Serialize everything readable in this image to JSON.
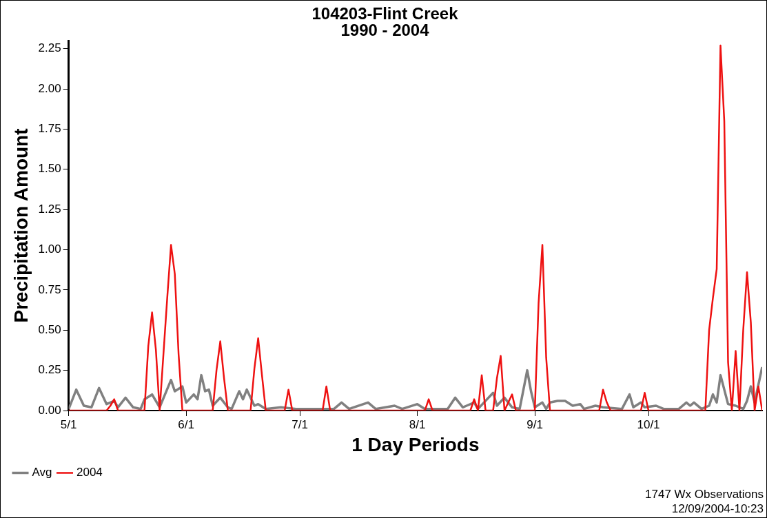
{
  "chart_data": {
    "type": "line",
    "title": "104203-Flint Creek",
    "subtitle": "1990 - 2004",
    "xlabel": "1 Day Periods",
    "ylabel": "Precipitation Amount",
    "annotations": [
      "1747 Wx Observations",
      "12/09/2004-10:23"
    ],
    "xlim": [
      "--05-01",
      "--10-31"
    ],
    "xticks": [
      {
        "value": "--05-01",
        "label": "5/1"
      },
      {
        "value": "--06-01",
        "label": "6/1"
      },
      {
        "value": "--07-01",
        "label": "7/1"
      },
      {
        "value": "--08-01",
        "label": "8/1"
      },
      {
        "value": "--09-01",
        "label": "9/1"
      },
      {
        "value": "--10-01",
        "label": "10/1"
      }
    ],
    "ylim": [
      0,
      2.3
    ],
    "yticks": [
      {
        "value": 0,
        "label": "0.00"
      },
      {
        "value": 0.25,
        "label": "0.25"
      },
      {
        "value": 0.5,
        "label": "0.50"
      },
      {
        "value": 0.75,
        "label": "0.75"
      },
      {
        "value": 1,
        "label": "1.00"
      },
      {
        "value": 1.25,
        "label": "1.25"
      },
      {
        "value": 1.5,
        "label": "1.50"
      },
      {
        "value": 1.75,
        "label": "1.75"
      },
      {
        "value": 2,
        "label": "2.00"
      },
      {
        "value": 2.25,
        "label": "2.25"
      }
    ],
    "grid": false,
    "legend": "bottom left",
    "marker": "none",
    "line_style": "solid",
    "series": [
      {
        "name": "Avg",
        "color": "#808080",
        "x": [
          "--05-01",
          "--05-03",
          "--05-05",
          "--05-07",
          "--05-09",
          "--05-11",
          "--05-13",
          "--05-14",
          "--05-16",
          "--05-18",
          "--05-20",
          "--05-21",
          "--05-23",
          "--05-25",
          "--05-28",
          "--05-29",
          "--05-31",
          "--06-01",
          "--06-03",
          "--06-04",
          "--06-05",
          "--06-06",
          "--06-07",
          "--06-08",
          "--06-10",
          "--06-12",
          "--06-13",
          "--06-15",
          "--06-16",
          "--06-17",
          "--06-19",
          "--06-20",
          "--06-22",
          "--06-26",
          "--06-30",
          "--07-10",
          "--07-12",
          "--07-14",
          "--07-19",
          "--07-21",
          "--07-26",
          "--07-28",
          "--08-01",
          "--08-03",
          "--08-09",
          "--08-11",
          "--08-13",
          "--08-14",
          "--08-16",
          "--08-17",
          "--08-21",
          "--08-22",
          "--08-24",
          "--08-26",
          "--08-28",
          "--08-30",
          "--08-31",
          "--09-01",
          "--09-03",
          "--09-04",
          "--09-05",
          "--09-07",
          "--09-09",
          "--09-11",
          "--09-13",
          "--09-14",
          "--09-17",
          "--09-19",
          "--09-24",
          "--09-26",
          "--09-27",
          "--09-29",
          "--09-30",
          "--10-03",
          "--10-05",
          "--10-09",
          "--10-11",
          "--10-12",
          "--10-13",
          "--10-15",
          "--10-17",
          "--10-18",
          "--10-19",
          "--10-20",
          "--10-22",
          "--10-24",
          "--10-26",
          "--10-27",
          "--10-28",
          "--10-29",
          "--10-31"
        ],
        "values": [
          0.01,
          0.13,
          0.03,
          0.02,
          0.14,
          0.04,
          0.06,
          0.02,
          0.08,
          0.02,
          0.01,
          0.07,
          0.1,
          0.02,
          0.19,
          0.12,
          0.15,
          0.05,
          0.1,
          0.07,
          0.22,
          0.12,
          0.13,
          0.03,
          0.08,
          0.02,
          0.01,
          0.12,
          0.07,
          0.13,
          0.03,
          0.04,
          0.01,
          0.02,
          0.01,
          0.01,
          0.05,
          0.01,
          0.05,
          0.01,
          0.03,
          0.01,
          0.04,
          0.01,
          0.01,
          0.08,
          0.02,
          0.03,
          0.05,
          0.01,
          0.11,
          0.03,
          0.08,
          0.02,
          0.01,
          0.25,
          0.12,
          0.02,
          0.05,
          0.01,
          0.05,
          0.06,
          0.06,
          0.03,
          0.04,
          0.01,
          0.03,
          0.02,
          0.01,
          0.1,
          0.02,
          0.05,
          0.02,
          0.03,
          0.01,
          0.01,
          0.05,
          0.03,
          0.05,
          0.01,
          0.03,
          0.1,
          0.05,
          0.22,
          0.04,
          0.03,
          0.01,
          0.06,
          0.15,
          0.05,
          0.27
        ]
      },
      {
        "name": "2004",
        "color": "#ee1111",
        "x": [
          "--05-01",
          "--05-11",
          "--05-12",
          "--05-13",
          "--05-14",
          "--05-21",
          "--05-22",
          "--05-23",
          "--05-24",
          "--05-25",
          "--05-26",
          "--05-27",
          "--05-28",
          "--05-29",
          "--05-30",
          "--05-31",
          "--06-08",
          "--06-09",
          "--06-10",
          "--06-11",
          "--06-12",
          "--06-18",
          "--06-19",
          "--06-20",
          "--06-21",
          "--06-22",
          "--06-27",
          "--06-28",
          "--06-29",
          "--07-07",
          "--07-08",
          "--07-09",
          "--08-03",
          "--08-04",
          "--08-05",
          "--08-15",
          "--08-16",
          "--08-17",
          "--08-18",
          "--08-19",
          "--08-21",
          "--08-22",
          "--08-23",
          "--08-24",
          "--08-25",
          "--08-26",
          "--08-27",
          "--09-01",
          "--09-02",
          "--09-03",
          "--09-04",
          "--09-05",
          "--09-18",
          "--09-19",
          "--09-20",
          "--09-21",
          "--09-29",
          "--09-30",
          "--10-01",
          "--10-16",
          "--10-17",
          "--10-18",
          "--10-19",
          "--10-20",
          "--10-21",
          "--10-22",
          "--10-23",
          "--10-24",
          "--10-25",
          "--10-26",
          "--10-27",
          "--10-28",
          "--10-29",
          "--10-30",
          "--10-31"
        ],
        "values": [
          0,
          0,
          0.03,
          0.07,
          0,
          0,
          0.4,
          0.61,
          0.38,
          0,
          0.35,
          0.7,
          1.03,
          0.85,
          0.35,
          0,
          0,
          0.25,
          0.43,
          0.2,
          0,
          0,
          0.26,
          0.45,
          0.22,
          0,
          0,
          0.13,
          0,
          0,
          0.15,
          0,
          0,
          0.07,
          0,
          0,
          0.07,
          0,
          0.22,
          0,
          0,
          0.2,
          0.34,
          0,
          0.05,
          0.1,
          0,
          0,
          0.67,
          1.03,
          0.33,
          0,
          0,
          0.13,
          0.05,
          0,
          0,
          0.11,
          0,
          0,
          0.5,
          0.7,
          0.88,
          2.27,
          1.8,
          0.3,
          0,
          0.37,
          0,
          0.5,
          0.86,
          0.55,
          0,
          0.15,
          0
        ]
      }
    ]
  }
}
